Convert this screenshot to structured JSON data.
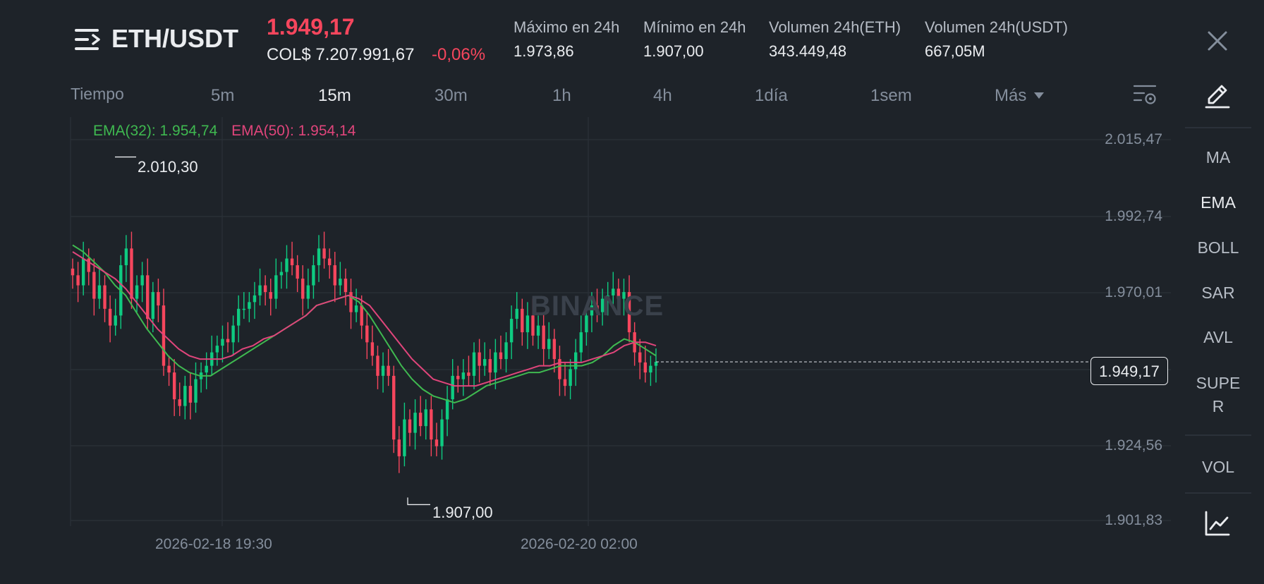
{
  "header": {
    "pair": "ETH/USDT",
    "price": "1.949,17",
    "fiat_price": "COL$ 7.207.991,67",
    "change": "-0,06%",
    "stats": [
      {
        "label": "Máximo en 24h",
        "value": "1.973,86"
      },
      {
        "label": "Mínimo en 24h",
        "value": "1.907,00"
      },
      {
        "label": "Volumen 24h(ETH)",
        "value": "343.449,48"
      },
      {
        "label": "Volumen 24h(USDT)",
        "value": "667,05M"
      }
    ]
  },
  "intervals": {
    "label": "Tiempo",
    "items": [
      "5m",
      "15m",
      "30m",
      "1h",
      "4h",
      "1día",
      "1sem"
    ],
    "active": "15m",
    "more": "Más"
  },
  "indicators": {
    "items": [
      "MA",
      "EMA",
      "BOLL",
      "SAR",
      "AVL",
      "SUPE\nR"
    ],
    "active": "EMA",
    "volume": "VOL"
  },
  "watermark": "BINANCE",
  "colors": {
    "up": "#0ecb81",
    "down": "#f6465d",
    "ema32": "#3fb950",
    "ema50": "#e0457b",
    "bg": "#1e2329"
  },
  "icons": [
    "menu-icon",
    "close-icon",
    "chart-settings-icon",
    "pencil-icon",
    "line-chart-icon"
  ],
  "chart_data": {
    "type": "candlestick",
    "legend": {
      "ema32": "EMA(32): 1.954,74",
      "ema50": "EMA(50): 1.954,14"
    },
    "y_ticks": [
      "2.015,47",
      "1.992,74",
      "1.970,01",
      "1.924,56",
      "1.901,83"
    ],
    "y_range": [
      1901.83,
      2015.47
    ],
    "x_ticks": [
      "2026-02-18 19:30",
      "2026-02-20 02:00"
    ],
    "current_price": "1.949,17",
    "high_label": "2.010,30",
    "low_label": "1.907,00",
    "closes": [
      1975,
      1972,
      1980,
      1976,
      1968,
      1972,
      1965,
      1960,
      1963,
      1978,
      1983,
      1968,
      1972,
      1975,
      1962,
      1970,
      1966,
      1948,
      1946,
      1938,
      1936,
      1942,
      1937,
      1944,
      1946,
      1948,
      1952,
      1954,
      1956,
      1955,
      1960,
      1965,
      1965,
      1967,
      1969,
      1972,
      1970,
      1968,
      1975,
      1976,
      1980,
      1978,
      1974,
      1968,
      1972,
      1978,
      1983,
      1980,
      1978,
      1972,
      1974,
      1970,
      1964,
      1966,
      1960,
      1955,
      1951,
      1945,
      1948,
      1945,
      1926,
      1921,
      1932,
      1928,
      1934,
      1930,
      1935,
      1926,
      1924,
      1932,
      1938,
      1945,
      1944,
      1946,
      1945,
      1952,
      1948,
      1950,
      1946,
      1952,
      1950,
      1955,
      1962,
      1965,
      1958,
      1963,
      1957,
      1960,
      1953,
      1956,
      1950,
      1944,
      1942,
      1947,
      1952,
      1958,
      1963,
      1966,
      1964,
      1968,
      1969,
      1971,
      1968,
      1970,
      1958,
      1952,
      1949,
      1946,
      1948,
      1949.17
    ],
    "ema32": [
      1984,
      1982,
      1979,
      1976,
      1972,
      1969,
      1964,
      1959,
      1955,
      1951,
      1948,
      1946,
      1945,
      1945,
      1947,
      1949,
      1951,
      1953,
      1955,
      1957,
      1959,
      1961,
      1963,
      1966,
      1967,
      1968,
      1969,
      1967,
      1963,
      1958,
      1953,
      1948,
      1944,
      1941,
      1939,
      1938,
      1937,
      1938,
      1940,
      1942,
      1943,
      1944,
      1945,
      1946,
      1946,
      1947,
      1948,
      1948,
      1948,
      1949,
      1951,
      1954,
      1956,
      1955,
      1953,
      1951
    ],
    "ema50": [
      1982,
      1980,
      1978,
      1976,
      1974,
      1971,
      1967,
      1963,
      1959,
      1956,
      1953,
      1951,
      1950,
      1950,
      1950,
      1951,
      1953,
      1954,
      1956,
      1957,
      1959,
      1961,
      1963,
      1966,
      1967,
      1968,
      1969,
      1968,
      1966,
      1962,
      1958,
      1954,
      1950,
      1947,
      1944,
      1943,
      1942,
      1942,
      1942,
      1943,
      1944,
      1945,
      1946,
      1947,
      1948,
      1948,
      1949,
      1949,
      1949,
      1950,
      1951,
      1952,
      1954,
      1955,
      1955,
      1954
    ]
  }
}
